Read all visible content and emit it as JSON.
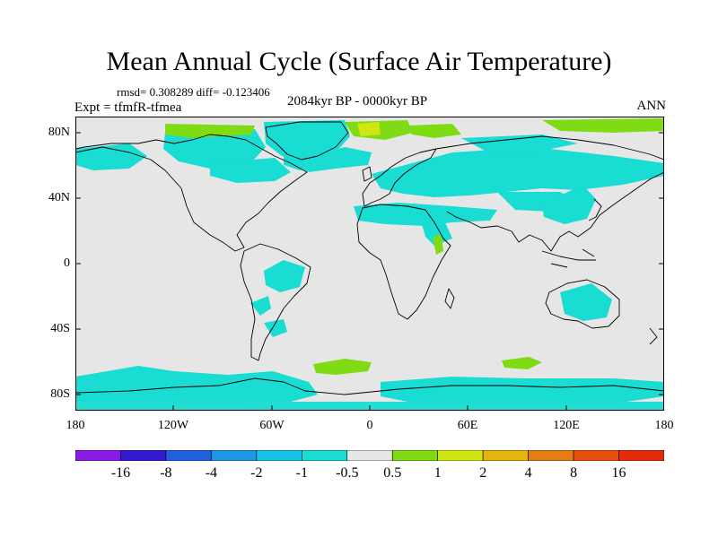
{
  "header": {
    "title": "Mean Annual Cycle (Surface Air Temperature)",
    "stats": "rmsd= 0.308289 diff= -0.123406",
    "expt": "Expt = tfmfR-tfmea",
    "period": "2084kyr BP - 0000kyr BP",
    "season": "ANN"
  },
  "axes": {
    "y_labels": [
      "80N",
      "40N",
      "0",
      "40S",
      "80S"
    ],
    "x_labels": [
      "180",
      "120W",
      "60W",
      "0",
      "60E",
      "120E",
      "180"
    ]
  },
  "colorbar": {
    "labels": [
      "-16",
      "-8",
      "-4",
      "-2",
      "-1",
      "-0.5",
      "0.5",
      "1",
      "2",
      "4",
      "8",
      "16"
    ],
    "colors": [
      "#8a1ae6",
      "#3319cf",
      "#1f5fe0",
      "#1c96e6",
      "#17c4e8",
      "#19dcd2",
      "#e6e6e6",
      "#7fdc14",
      "#cfe612",
      "#e6b40e",
      "#e67d12",
      "#e6500f",
      "#e62a0a"
    ]
  },
  "field_colors": {
    "neutral": "#e6e6e6",
    "cool": "#19dcd2",
    "warm": "#7fdc14",
    "warmer": "#cfe612"
  }
}
